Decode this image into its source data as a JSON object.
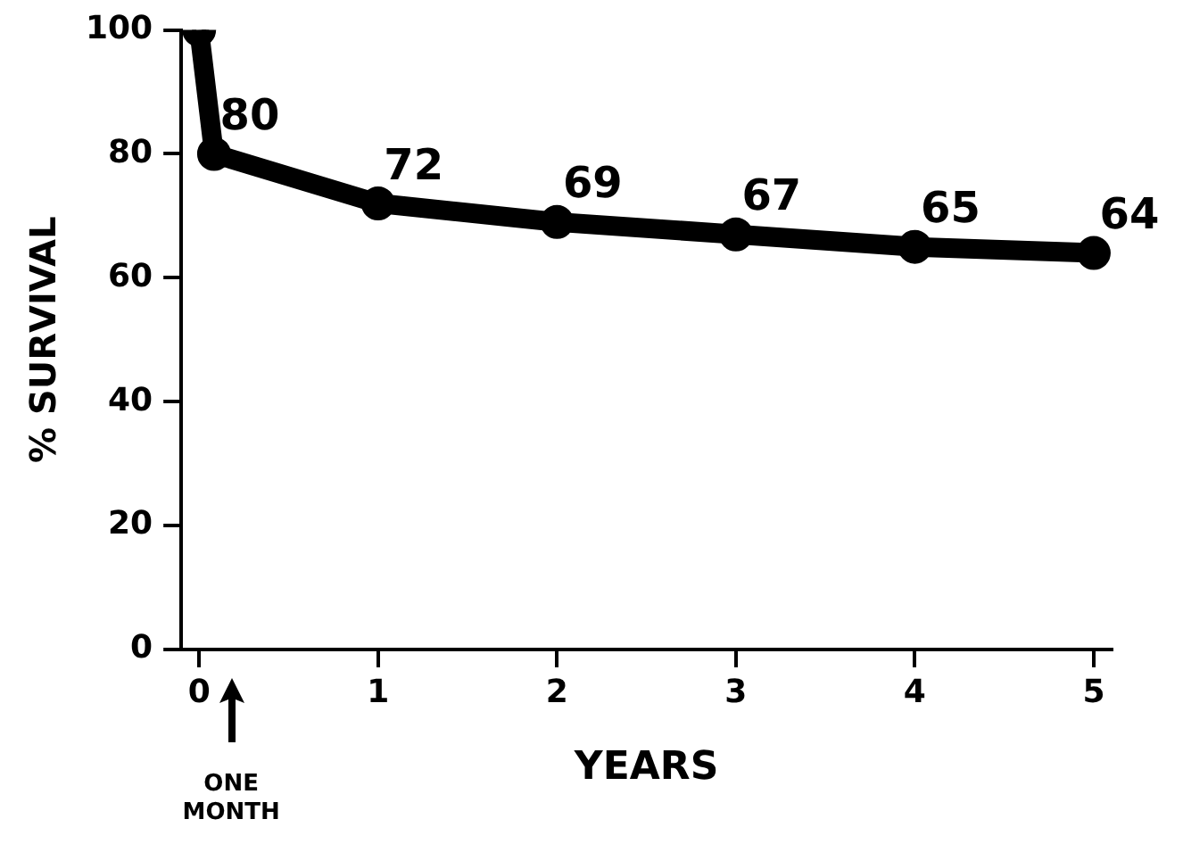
{
  "chart_data": {
    "type": "line",
    "xlabel": "YEARS",
    "ylabel": "% SURVIVAL",
    "x": [
      0,
      0.0833,
      1,
      2,
      3,
      4,
      5
    ],
    "series": [
      {
        "color": "#000000",
        "values": [
          100,
          80,
          72,
          69,
          67,
          65,
          64
        ],
        "value_labels": [
          null,
          "80",
          "72",
          "69",
          "67",
          "65",
          "64"
        ]
      }
    ],
    "xlim": [
      -0.1,
      5.1
    ],
    "xticks": [
      0,
      1,
      2,
      3,
      4,
      5
    ],
    "ylim": [
      0,
      100
    ],
    "yticks": [
      0,
      20,
      40,
      60,
      80,
      100
    ],
    "grid": false,
    "legend": false,
    "marker": "circle",
    "line_style": "solid",
    "annotations": [
      "ONE MONTH"
    ]
  }
}
